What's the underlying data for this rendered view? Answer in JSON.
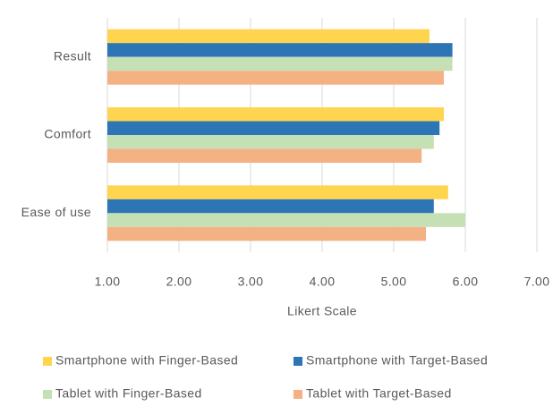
{
  "chart_data": {
    "type": "barh",
    "x_label": "Likert Scale",
    "categories": [
      "Result",
      "Comfort",
      "Ease of use"
    ],
    "series": [
      {
        "name": "Smartphone with Finger-Based",
        "color": "#ffd54f",
        "values": [
          5.5,
          5.7,
          5.76
        ]
      },
      {
        "name": "Smartphone with Target-Based",
        "color": "#2e75b6",
        "values": [
          5.82,
          5.64,
          5.56
        ]
      },
      {
        "name": "Tablet with Finger-Based",
        "color": "#c5e0b4",
        "values": [
          5.82,
          5.56,
          6.0
        ]
      },
      {
        "name": "Tablet with Target-Based",
        "color": "#f4b183",
        "values": [
          5.7,
          5.39,
          5.45
        ]
      }
    ],
    "xlim": [
      1,
      7
    ],
    "xticks": [
      {
        "value": 1,
        "label": "1.00"
      },
      {
        "value": 2,
        "label": "2.00"
      },
      {
        "value": 3,
        "label": "3.00"
      },
      {
        "value": 4,
        "label": "4.00"
      },
      {
        "value": 5,
        "label": "5.00"
      },
      {
        "value": 6,
        "label": "6.00"
      },
      {
        "value": 7,
        "label": "7.00"
      }
    ],
    "grid": true,
    "legend": "bottom"
  }
}
